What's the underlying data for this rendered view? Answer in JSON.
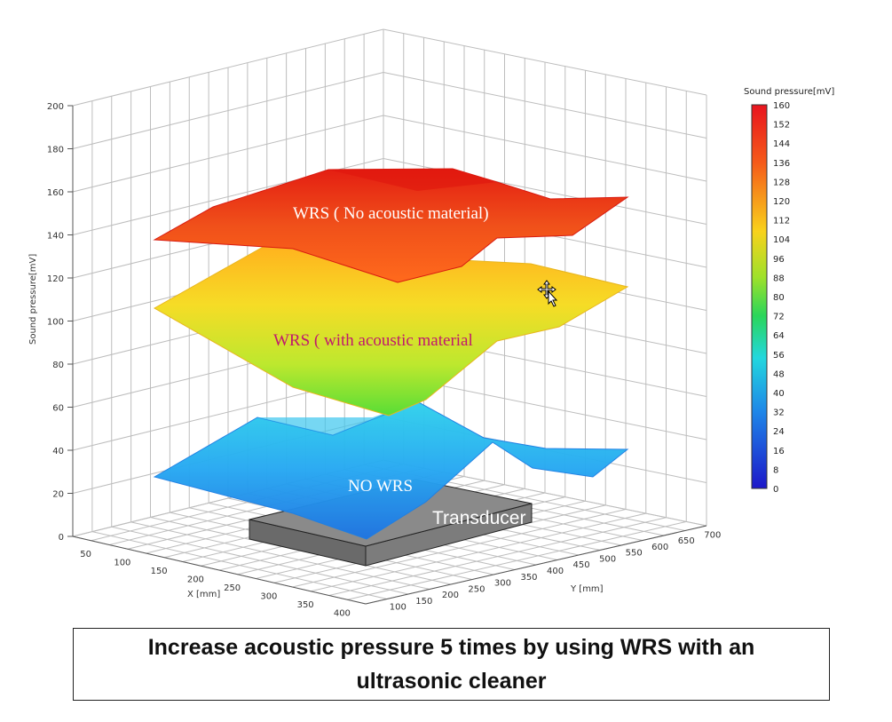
{
  "caption": "Increase acoustic pressure 5 times by using WRS with an ultrasonic cleaner",
  "chart_data": {
    "type": "surface3d",
    "zlabel": "Sound pressure[mV]",
    "xlabel": "X [mm]",
    "ylabel": "Y [mm]",
    "zlim": [
      0,
      200
    ],
    "z_ticks": [
      "0",
      "20",
      "40",
      "60",
      "80",
      "100",
      "120",
      "140",
      "160",
      "180",
      "200"
    ],
    "x_ticks": [
      "50",
      "100",
      "150",
      "200",
      "250",
      "300",
      "350",
      "400"
    ],
    "y_ticks": [
      "100",
      "150",
      "200",
      "250",
      "300",
      "350",
      "400",
      "450",
      "500",
      "550",
      "600",
      "650",
      "700"
    ],
    "grid": true,
    "colorbar": {
      "title": "Sound pressure[mV]",
      "range": [
        0,
        160
      ],
      "ticks": [
        "160",
        "152",
        "144",
        "136",
        "128",
        "120",
        "112",
        "104",
        "96",
        "88",
        "80",
        "72",
        "64",
        "56",
        "48",
        "40",
        "32",
        "24",
        "16",
        "8",
        "0"
      ]
    },
    "series": [
      {
        "name": "WRS ( No acoustic material)",
        "approx_level_mV": 145,
        "color": "#f04a18"
      },
      {
        "name": "WRS ( with acoustic material",
        "approx_level_mV": 105,
        "color": "#f3cf20"
      },
      {
        "name": "NO WRS",
        "approx_level_mV": 28,
        "color": "#2a9af0"
      }
    ],
    "annotations": [
      "Transducer"
    ]
  }
}
